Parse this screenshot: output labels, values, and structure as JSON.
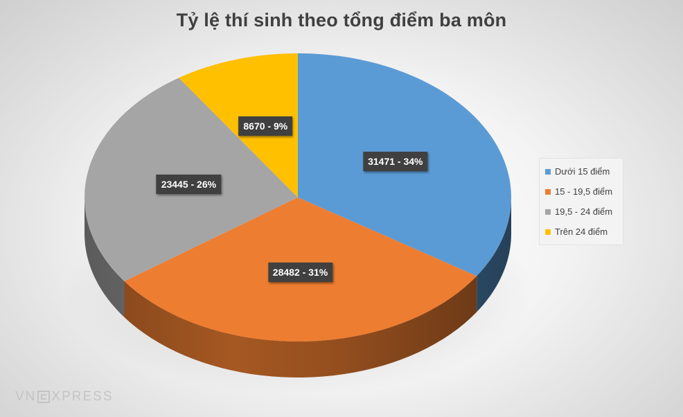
{
  "chart_data": {
    "type": "pie",
    "title": "Tỷ lệ thí sinh theo tổng điểm ba môn",
    "categories": [
      "Dưới 15 điểm",
      "15 - 19,5 điểm",
      "19,5 - 24 điểm",
      "Trên 24 điểm"
    ],
    "values": [
      31471,
      28482,
      23445,
      8670
    ],
    "percentages": [
      34,
      31,
      26,
      9
    ],
    "data_labels": [
      "31471 - 34%",
      "28482 - 31%",
      "23445 - 26%",
      "8670 - 9%"
    ],
    "colors": [
      "#5B9BD5",
      "#ED7D31",
      "#A5A5A5",
      "#FFC000"
    ],
    "legend_placement": "right",
    "style": "3d"
  },
  "watermark": {
    "left": "VN",
    "right": "XPRESS"
  }
}
